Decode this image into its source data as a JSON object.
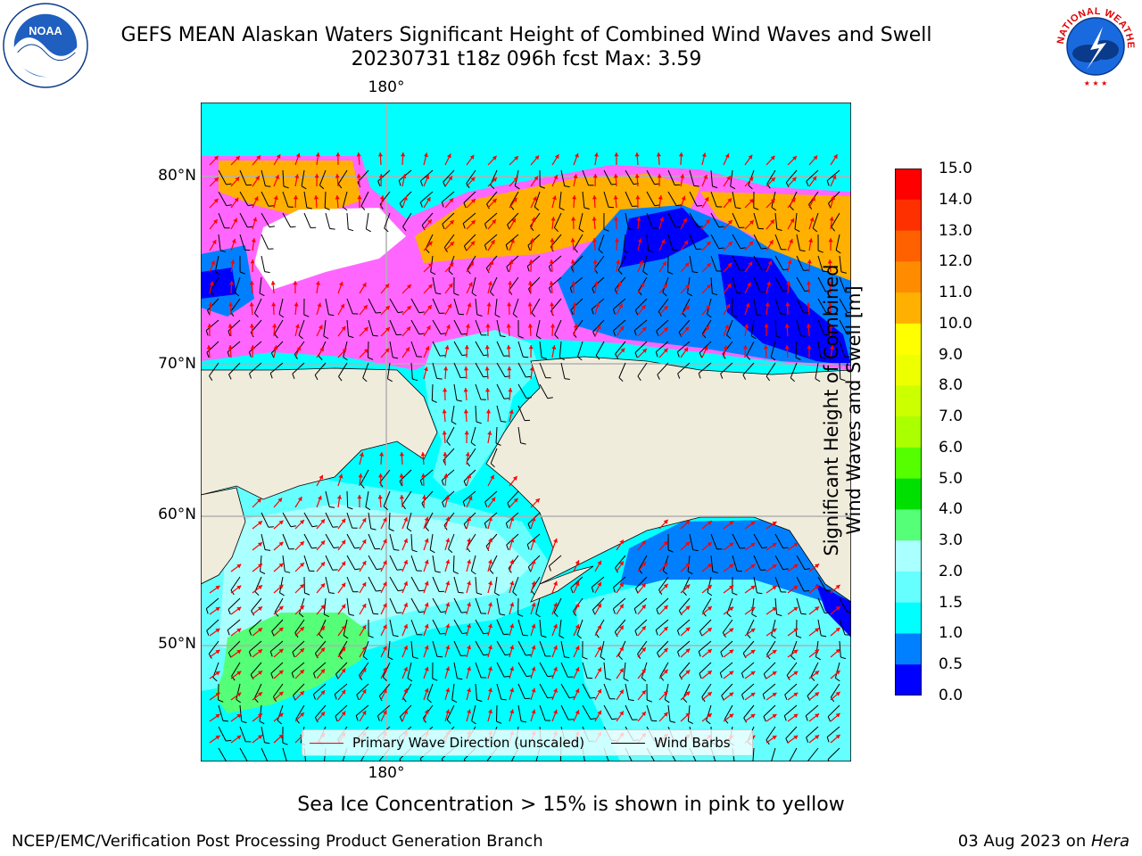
{
  "header": {
    "title_line1": "GEFS MEAN Alaskan Waters Significant Height of Combined Wind Waves and Swell",
    "title_line2": "20230731 t18z 096h fcst   Max: 3.59",
    "noaa_logo_text": "NOAA",
    "nws_logo_text": "NATIONAL WEATHER SERVICE"
  },
  "map": {
    "lon_label_top": "180°",
    "lon_label_bottom": "180°",
    "lat_labels": [
      "80°N",
      "70°N",
      "60°N",
      "50°N"
    ],
    "legend": {
      "wave_direction_label": "Primary Wave Direction (unscaled)",
      "wind_barbs_label": "Wind Barbs",
      "wave_direction_color": "#ff0000",
      "wind_barbs_color": "#000000"
    },
    "colors": {
      "land": "#efecdc",
      "ice_pink": "#ff66ff",
      "ice_orange": "#ffb000",
      "wave_dark_blue": "#0000ff",
      "wave_blue": "#0080ff",
      "wave_cyan": "#00ffff",
      "wave_light_cyan": "#66ffff",
      "wave_pale": "#aaffff",
      "wave_green": "#55ff77"
    }
  },
  "colorbar": {
    "label_line1": "Significant Height of Combined",
    "label_line2": "Wind Waves and Swell [m]",
    "ticks": [
      "15.0",
      "14.0",
      "13.0",
      "12.0",
      "11.0",
      "10.0",
      "9.0",
      "8.0",
      "7.0",
      "6.0",
      "5.0",
      "4.0",
      "3.0",
      "2.0",
      "1.5",
      "1.0",
      "0.5",
      "0.0"
    ],
    "colors": [
      "#ff0000",
      "#ff3000",
      "#ff6000",
      "#ff8c00",
      "#ffb000",
      "#ffff00",
      "#eeff00",
      "#ccff00",
      "#aaff00",
      "#55ff00",
      "#00e000",
      "#55ff77",
      "#aaffff",
      "#66ffff",
      "#00ffff",
      "#0080ff",
      "#0000ff"
    ]
  },
  "caption": "Sea Ice Concentration > 15% is shown in pink to yellow",
  "footer": {
    "left": "NCEP/EMC/Verification Post Processing Product Generation Branch",
    "right_date": "03 Aug 2023 on ",
    "right_host": "Hera"
  }
}
